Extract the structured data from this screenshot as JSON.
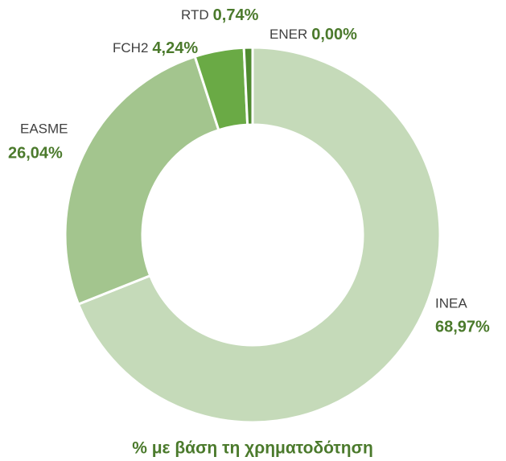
{
  "chart_data": {
    "type": "donut",
    "title": "% με βάση τη χρηματοδότηση",
    "categories": [
      "INEA",
      "EASME",
      "FCH2",
      "RTD",
      "ENER"
    ],
    "values": [
      68.97,
      26.04,
      4.24,
      0.74,
      0.0
    ],
    "value_labels": [
      "68,97%",
      "26,04%",
      "4,24%",
      "0,74%",
      "0,00%"
    ],
    "colors": [
      "#c5dab9",
      "#a3c58e",
      "#6aaa45",
      "#4f8a30",
      "#3e6e27"
    ]
  }
}
